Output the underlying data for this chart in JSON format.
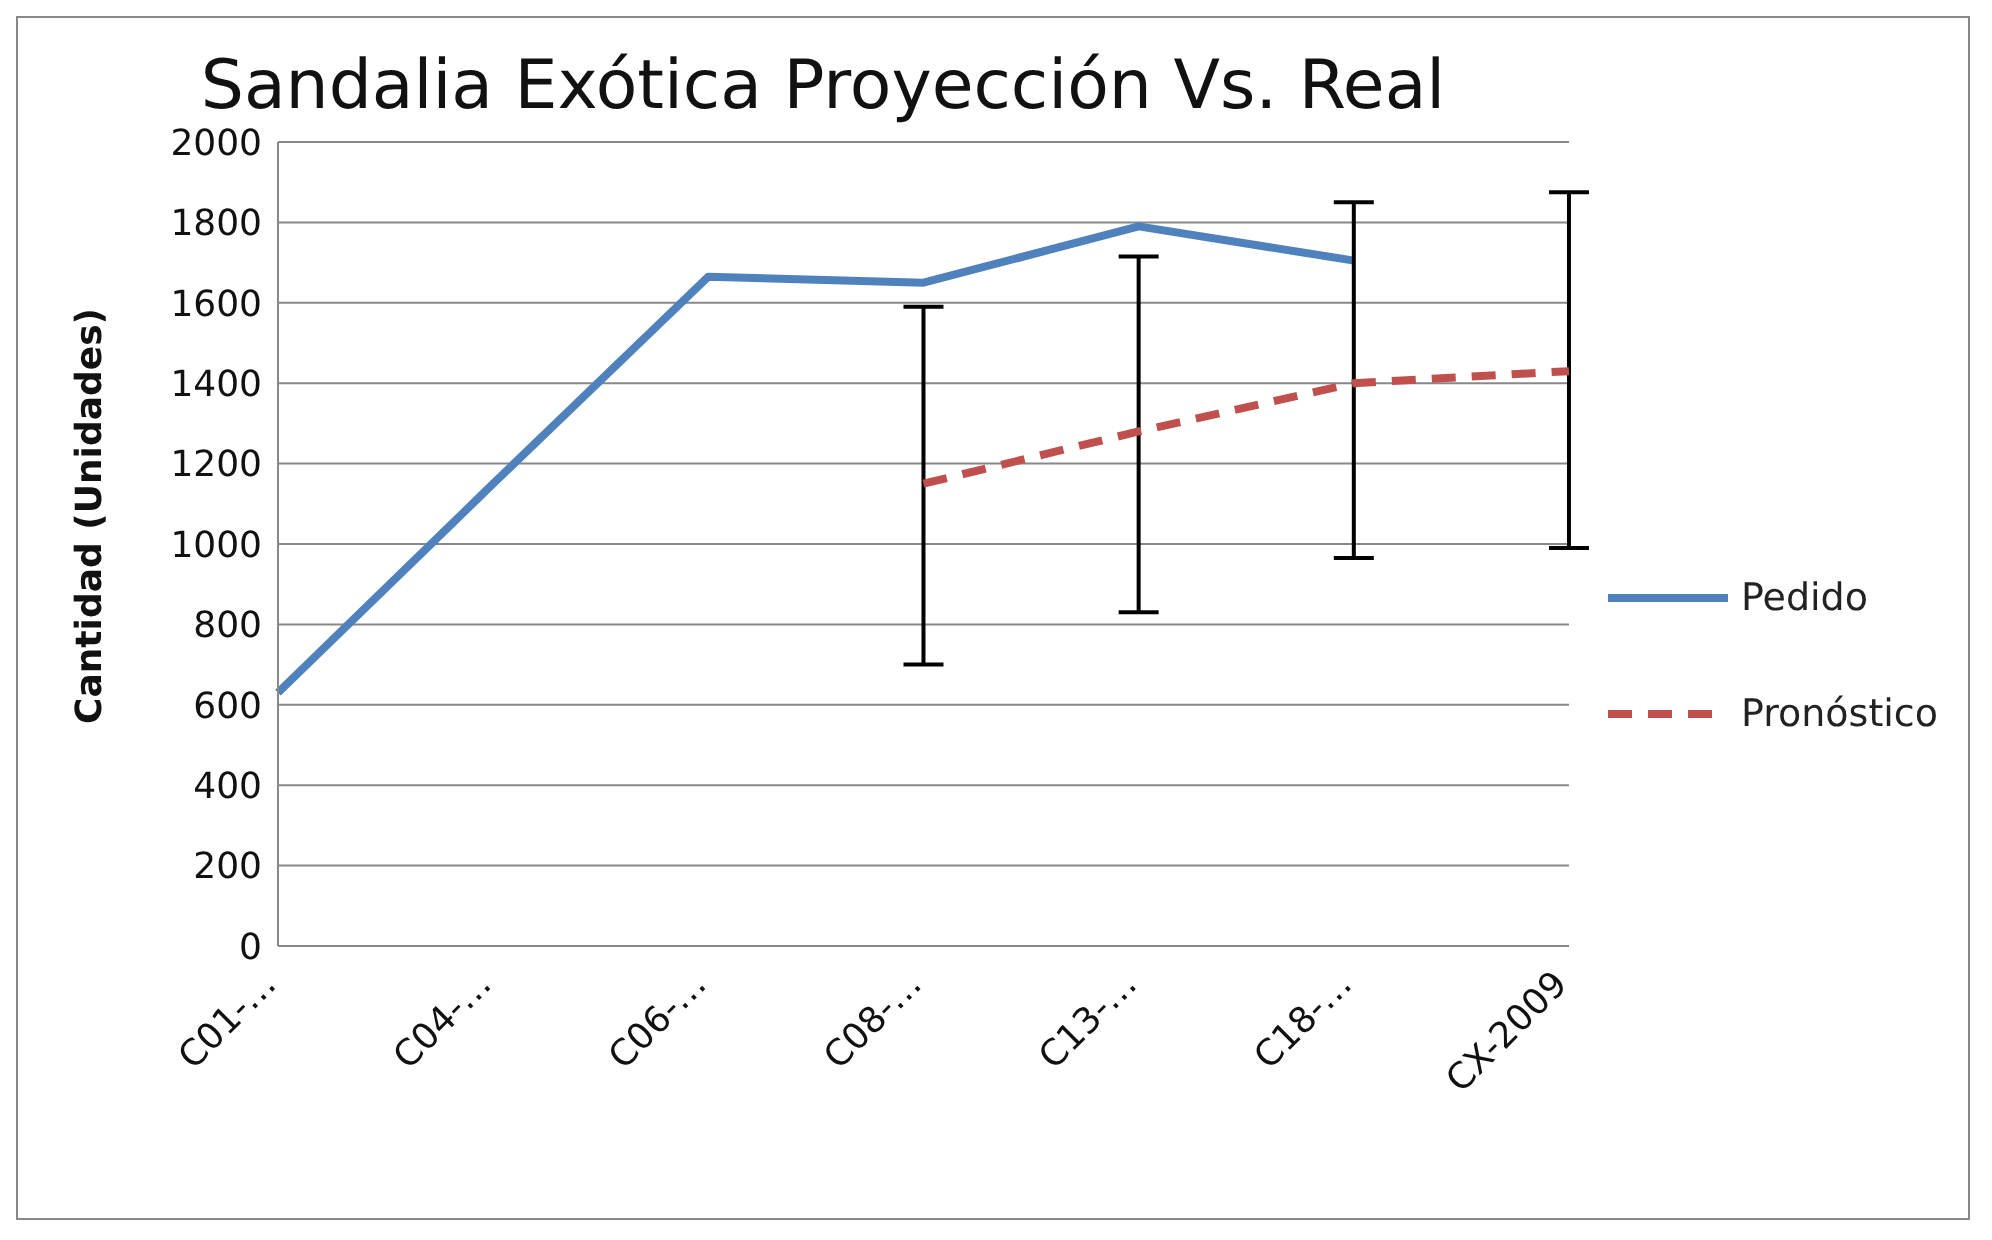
{
  "chart_data": {
    "type": "line",
    "title": "Sandalia Exótica Proyección Vs. Real",
    "ylabel": "Cantidad (Unidades)",
    "categories": [
      "C01-…",
      "C04-…",
      "C06-…",
      "C08-…",
      "C13-…",
      "C18-…",
      "CX-2009"
    ],
    "series": [
      {
        "name": "Pedido",
        "color": "#4f81bd",
        "line_style": "solid",
        "values": [
          630,
          1150,
          1665,
          1650,
          1790,
          1705,
          null
        ]
      },
      {
        "name": "Pronóstico",
        "color": "#c0504d",
        "line_style": "dashed",
        "values": [
          null,
          null,
          null,
          1150,
          1280,
          1400,
          1430
        ],
        "errors": [
          null,
          null,
          null,
          [
            700,
            1590
          ],
          [
            830,
            1715
          ],
          [
            965,
            1850
          ],
          [
            990,
            1875
          ]
        ]
      }
    ],
    "ylim": [
      0,
      2000
    ],
    "yticks": [
      0,
      200,
      400,
      600,
      800,
      1000,
      1200,
      1400,
      1600,
      1800,
      2000
    ],
    "grid": "y",
    "legend": "right",
    "marker": "none"
  }
}
